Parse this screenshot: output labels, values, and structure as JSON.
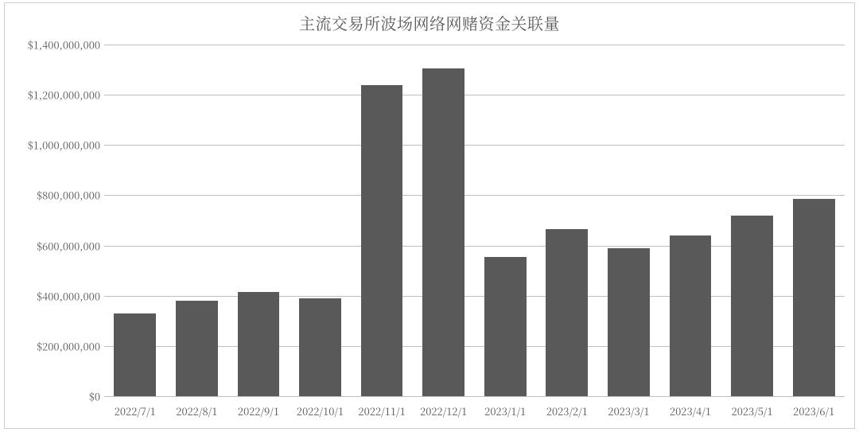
{
  "chart": {
    "type": "bar",
    "title": "主流交易所波场网络网赌资金关联量",
    "title_fontsize": 20,
    "title_color": "#595959",
    "background_color": "#ffffff",
    "border_color": "#cfcfcf",
    "grid_color": "#bfbfbf",
    "bar_color": "#595959",
    "axis_label_color": "#595959",
    "axis_label_fontsize": 13,
    "bar_width_ratio": 0.68,
    "categories": [
      "2022/7/1",
      "2022/8/1",
      "2022/9/1",
      "2022/10/1",
      "2022/11/1",
      "2022/12/1",
      "2023/1/1",
      "2023/2/1",
      "2023/3/1",
      "2023/4/1",
      "2023/5/1",
      "2023/6/1"
    ],
    "values": [
      330000000,
      380000000,
      415000000,
      390000000,
      1240000000,
      1305000000,
      555000000,
      665000000,
      590000000,
      640000000,
      720000000,
      785000000
    ],
    "y_axis": {
      "min": 0,
      "max": 1400000000,
      "tick_step": 200000000,
      "tick_labels": [
        "$0",
        "$200,000,000",
        "$400,000,000",
        "$600,000,000",
        "$800,000,000",
        "$1,000,000,000",
        "$1,200,000,000",
        "$1,400,000,000"
      ]
    }
  }
}
